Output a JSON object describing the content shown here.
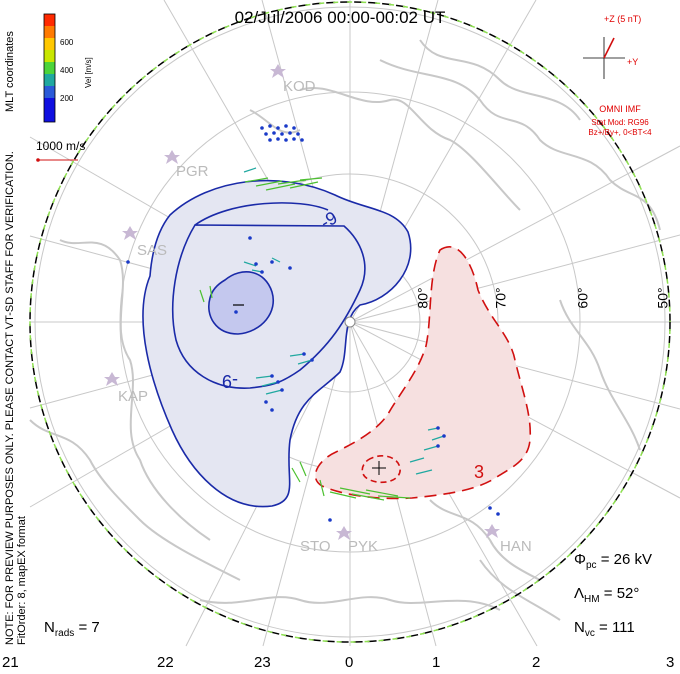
{
  "title": "02/Jul/2006 00:00-00:02 UT",
  "colorbar": {
    "label": "Vel [m/s]",
    "ticks": [
      "600",
      "400",
      "200"
    ],
    "colors": [
      "#ff2a00",
      "#ff7a00",
      "#ffc800",
      "#c8e600",
      "#4cd43a",
      "#20a8a0",
      "#2a5ad8",
      "#1010e0"
    ]
  },
  "coord_label": "MLT coordinates",
  "scale": {
    "label": "1000 m/s"
  },
  "note": "NOTE: FOR PREVIEW PURPOSES ONLY. PLEASE CONTACT VT-SD STAFF FOR VERIFICATION.",
  "fit": "FitOrder: 8, mapEX format",
  "imf": {
    "z_label": "+Z (5 nT)",
    "y_label": "+Y",
    "source": "OMNI IMF",
    "model": "Stat Mod: RG96",
    "condition": "Bz+/By+, 0<BT<4"
  },
  "latitudes": [
    "80°",
    "70°",
    "60°",
    "50°"
  ],
  "mlt_labels": [
    "21",
    "22",
    "23",
    "0",
    "1",
    "2",
    "3"
  ],
  "stations": [
    "KOD",
    "PGR",
    "SAS",
    "KAP",
    "STO",
    "PYK",
    "HAN"
  ],
  "contours": {
    "neg": "-9",
    "pos": "3",
    "min": "−",
    "max": "+"
  },
  "stats": {
    "phi_pc": "= 26 kV",
    "lambda_hm": "= 52°",
    "n_vc": "= 111",
    "n_rads": "= 7"
  },
  "colors": {
    "neg": "#1a2aa8",
    "pos": "#d11010",
    "neg_fill": "#e4e6f2",
    "pos_fill": "#f6e0e0"
  }
}
